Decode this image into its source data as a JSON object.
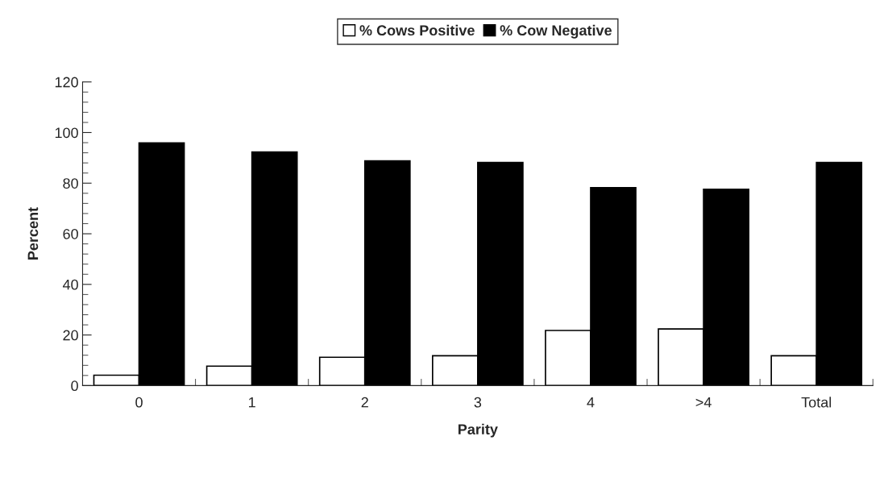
{
  "chart_data": {
    "type": "bar",
    "categories": [
      "0",
      "1",
      "2",
      "3",
      "4",
      ">4",
      "Total"
    ],
    "series": [
      {
        "name": "% Cows Positive",
        "color": "#ffffff",
        "values": [
          4.1,
          7.7,
          11.2,
          11.8,
          21.8,
          22.4,
          11.8
        ]
      },
      {
        "name": "% Cow Negative",
        "color": "#000000",
        "values": [
          95.9,
          92.3,
          88.8,
          88.2,
          78.2,
          77.6,
          88.2
        ]
      }
    ],
    "xlabel": "Parity",
    "ylabel": "Percent",
    "ylim": [
      0,
      120
    ],
    "yticks": [
      0,
      20,
      40,
      60,
      80,
      100,
      120
    ],
    "grid": false,
    "legend": "top"
  }
}
